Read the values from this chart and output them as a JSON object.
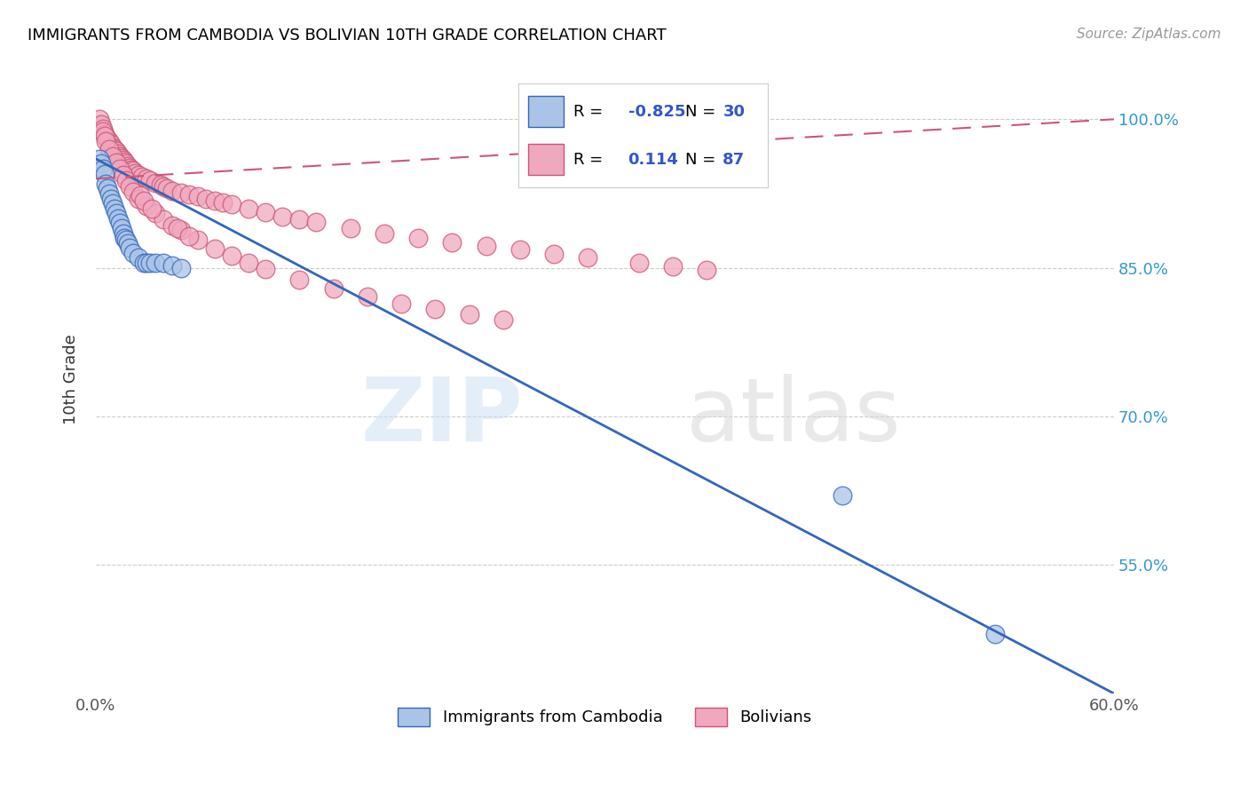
{
  "title": "IMMIGRANTS FROM CAMBODIA VS BOLIVIAN 10TH GRADE CORRELATION CHART",
  "source": "Source: ZipAtlas.com",
  "ylabel": "10th Grade",
  "yticks": [
    1.0,
    0.85,
    0.7,
    0.55
  ],
  "ytick_labels": [
    "100.0%",
    "85.0%",
    "70.0%",
    "55.0%"
  ],
  "legend_label1": "Immigrants from Cambodia",
  "legend_label2": "Bolivians",
  "r1": "-0.825",
  "n1": "30",
  "r2": "0.114",
  "n2": "87",
  "color_cambodia": "#aac4e8",
  "color_bolivia": "#f0a8be",
  "line_color_cambodia": "#3366bb",
  "line_color_bolivia": "#cc5577",
  "watermark_zip": "ZIP",
  "watermark_atlas": "atlas",
  "xlim": [
    0.0,
    0.6
  ],
  "ylim": [
    0.42,
    1.055
  ],
  "cambodia_x": [
    0.002,
    0.003,
    0.004,
    0.005,
    0.006,
    0.007,
    0.008,
    0.009,
    0.01,
    0.011,
    0.012,
    0.013,
    0.014,
    0.015,
    0.016,
    0.017,
    0.018,
    0.019,
    0.02,
    0.022,
    0.025,
    0.028,
    0.03,
    0.032,
    0.035,
    0.04,
    0.045,
    0.05,
    0.44,
    0.53
  ],
  "cambodia_y": [
    0.96,
    0.955,
    0.95,
    0.945,
    0.935,
    0.93,
    0.925,
    0.92,
    0.915,
    0.91,
    0.905,
    0.9,
    0.895,
    0.89,
    0.885,
    0.88,
    0.878,
    0.875,
    0.87,
    0.865,
    0.86,
    0.855,
    0.855,
    0.855,
    0.855,
    0.855,
    0.852,
    0.85,
    0.62,
    0.48
  ],
  "bolivia_x": [
    0.002,
    0.003,
    0.004,
    0.005,
    0.006,
    0.007,
    0.008,
    0.009,
    0.01,
    0.011,
    0.012,
    0.013,
    0.014,
    0.015,
    0.016,
    0.017,
    0.018,
    0.019,
    0.02,
    0.021,
    0.022,
    0.023,
    0.025,
    0.027,
    0.03,
    0.032,
    0.035,
    0.038,
    0.04,
    0.042,
    0.045,
    0.05,
    0.055,
    0.06,
    0.065,
    0.07,
    0.075,
    0.08,
    0.09,
    0.1,
    0.11,
    0.12,
    0.13,
    0.15,
    0.17,
    0.19,
    0.21,
    0.23,
    0.25,
    0.27,
    0.29,
    0.32,
    0.34,
    0.36,
    0.004,
    0.005,
    0.006,
    0.008,
    0.01,
    0.012,
    0.014,
    0.016,
    0.018,
    0.02,
    0.022,
    0.025,
    0.03,
    0.035,
    0.04,
    0.045,
    0.05,
    0.06,
    0.07,
    0.08,
    0.09,
    0.1,
    0.12,
    0.14,
    0.16,
    0.18,
    0.2,
    0.22,
    0.24,
    0.026,
    0.028,
    0.033,
    0.048,
    0.055
  ],
  "bolivia_y": [
    1.0,
    0.995,
    0.99,
    0.985,
    0.982,
    0.98,
    0.978,
    0.975,
    0.972,
    0.97,
    0.968,
    0.965,
    0.963,
    0.961,
    0.959,
    0.957,
    0.955,
    0.953,
    0.951,
    0.949,
    0.948,
    0.946,
    0.944,
    0.942,
    0.94,
    0.938,
    0.936,
    0.934,
    0.932,
    0.93,
    0.928,
    0.926,
    0.924,
    0.922,
    0.92,
    0.918,
    0.916,
    0.914,
    0.91,
    0.906,
    0.902,
    0.899,
    0.896,
    0.89,
    0.885,
    0.88,
    0.876,
    0.872,
    0.868,
    0.864,
    0.86,
    0.855,
    0.851,
    0.848,
    0.988,
    0.983,
    0.978,
    0.97,
    0.963,
    0.956,
    0.95,
    0.944,
    0.938,
    0.932,
    0.927,
    0.92,
    0.912,
    0.905,
    0.899,
    0.893,
    0.888,
    0.878,
    0.869,
    0.862,
    0.855,
    0.849,
    0.838,
    0.829,
    0.821,
    0.814,
    0.808,
    0.803,
    0.798,
    0.923,
    0.918,
    0.91,
    0.89,
    0.882
  ],
  "cam_line_x": [
    0.0,
    0.6
  ],
  "cam_line_y": [
    0.96,
    0.42
  ],
  "bol_line_x": [
    0.0,
    0.6
  ],
  "bol_line_y": [
    0.94,
    1.0
  ]
}
